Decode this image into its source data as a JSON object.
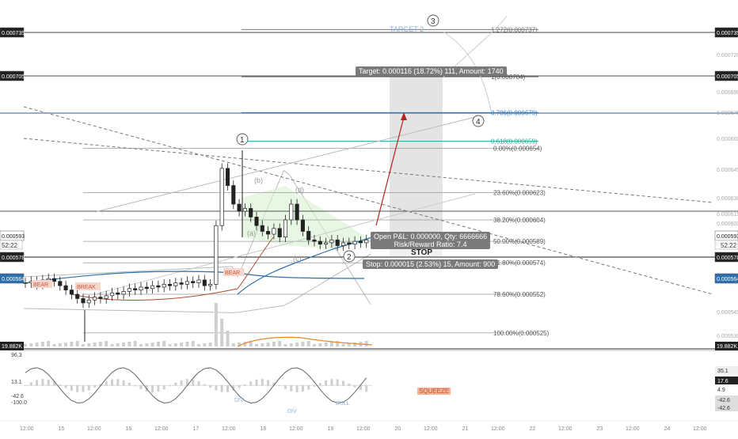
{
  "chart_data": {
    "type": "line",
    "price_ticks_right": [
      "0.000735",
      "0.000720",
      "0.000705",
      "0.000690",
      "0.000675",
      "0.000660",
      "0.000645",
      "0.000630",
      "0.000615",
      "0.000600",
      "0.000593",
      "0.000578",
      "0.000564",
      "0.000545",
      "0.000530"
    ],
    "price_highlight_right": [
      {
        "label": "0.000735",
        "style": "dark"
      },
      {
        "label": "0.000705",
        "style": "dark"
      },
      {
        "label": "0.000593",
        "style": "light"
      },
      {
        "label": "0.000578",
        "style": "dark"
      },
      {
        "label": "0.000564",
        "style": "blue"
      }
    ],
    "price_highlight_left": [
      {
        "label": "0.000735",
        "style": "dark"
      },
      {
        "label": "0.000705",
        "style": "dark"
      },
      {
        "label": "0.000593",
        "style": "light"
      },
      {
        "label": "0.000578",
        "style": "dark"
      },
      {
        "label": "0.000564",
        "style": "blue"
      }
    ],
    "timer_left": "52:22",
    "timer_right": "52:22",
    "x_ticks": [
      "12:00",
      "15",
      "12:00",
      "16",
      "12:00",
      "17",
      "12:00",
      "18",
      "12:00",
      "19",
      "12:00",
      "20",
      "12:00",
      "21",
      "12:00",
      "22",
      "12:00",
      "23",
      "12:00",
      "24",
      "12:00"
    ],
    "fib_levels": [
      {
        "label": "0.00%(0.000654)",
        "price": 0.000654
      },
      {
        "label": "23.60%(0.000623)",
        "price": 0.000623
      },
      {
        "label": "38.20%(0.000604)",
        "price": 0.000604
      },
      {
        "label": "50.00%(0.000589)",
        "price": 0.000589
      },
      {
        "label": "61.80%(0.000574)",
        "price": 0.000574
      },
      {
        "label": "78.60%(0.000552)",
        "price": 0.000552
      },
      {
        "label": "100.00%(0.000525)",
        "price": 0.000525
      }
    ],
    "ext_levels": [
      {
        "label": "1.272(0.000737)",
        "price": 0.000737
      },
      {
        "label": "1(0.000704)",
        "price": 0.000704
      },
      {
        "label": "0.786(0.000679)",
        "price": 0.000679
      },
      {
        "label": "0.618(0.000659)",
        "price": 0.000659
      }
    ],
    "wave_labels": [
      "1",
      "2",
      "3",
      "4"
    ],
    "sub_wave_labels": [
      "(a)",
      "(b)",
      "(c)",
      "(d)"
    ],
    "signal_labels": [
      "BEAR",
      "BREAK",
      "BEAR"
    ],
    "target_label": "TARGET 2",
    "target_tooltip": "Target: 0.000116 (18.72%) 111, Amount: 1740",
    "position_tooltip_line1": "Open P&L: 0.000000, Qty: 6666666",
    "position_tooltip_line2": "Risk/Reward Ratio: 7.4",
    "stop_label": "STOP",
    "stop_tooltip": "Stop: 0.000015 (2.53%) 15, Amount: 900",
    "volume_value_left": "19.882K",
    "volume_value_right": "19.882K",
    "osc_ticks_left": [
      "96.3",
      "13.1",
      "-42.6",
      "-100.0"
    ],
    "osc_ticks_right": [
      "35.1",
      "17.6",
      "4.9",
      "-42.6",
      "-42.6"
    ],
    "osc_labels": [
      "DIV",
      "DIV",
      "BULL"
    ],
    "squeeze_label": "SQUEEZE",
    "price_series": [
      0.00056,
      0.000561,
      0.000559,
      0.000562,
      0.000563,
      0.000561,
      0.000558,
      0.000555,
      0.000552,
      0.000549,
      0.000546,
      0.000548,
      0.00055,
      0.000549,
      0.000551,
      0.000553,
      0.000552,
      0.000554,
      0.000556,
      0.000555,
      0.000557,
      0.000556,
      0.000558,
      0.000557,
      0.000559,
      0.000558,
      0.00056,
      0.000559,
      0.000561,
      0.00056,
      0.000562,
      0.000558,
      0.000559,
      0.0006,
      0.00064,
      0.000628,
      0.000615,
      0.00061,
      0.000612,
      0.000606,
      0.0006,
      0.000596,
      0.000594,
      0.000598,
      0.000592,
      0.000604,
      0.000615,
      0.000604,
      0.000596,
      0.00059,
      0.000589,
      0.000587,
      0.000588,
      0.00059,
      0.000586,
      0.000588,
      0.000587,
      0.000589,
      0.000588,
      0.00059
    ]
  }
}
